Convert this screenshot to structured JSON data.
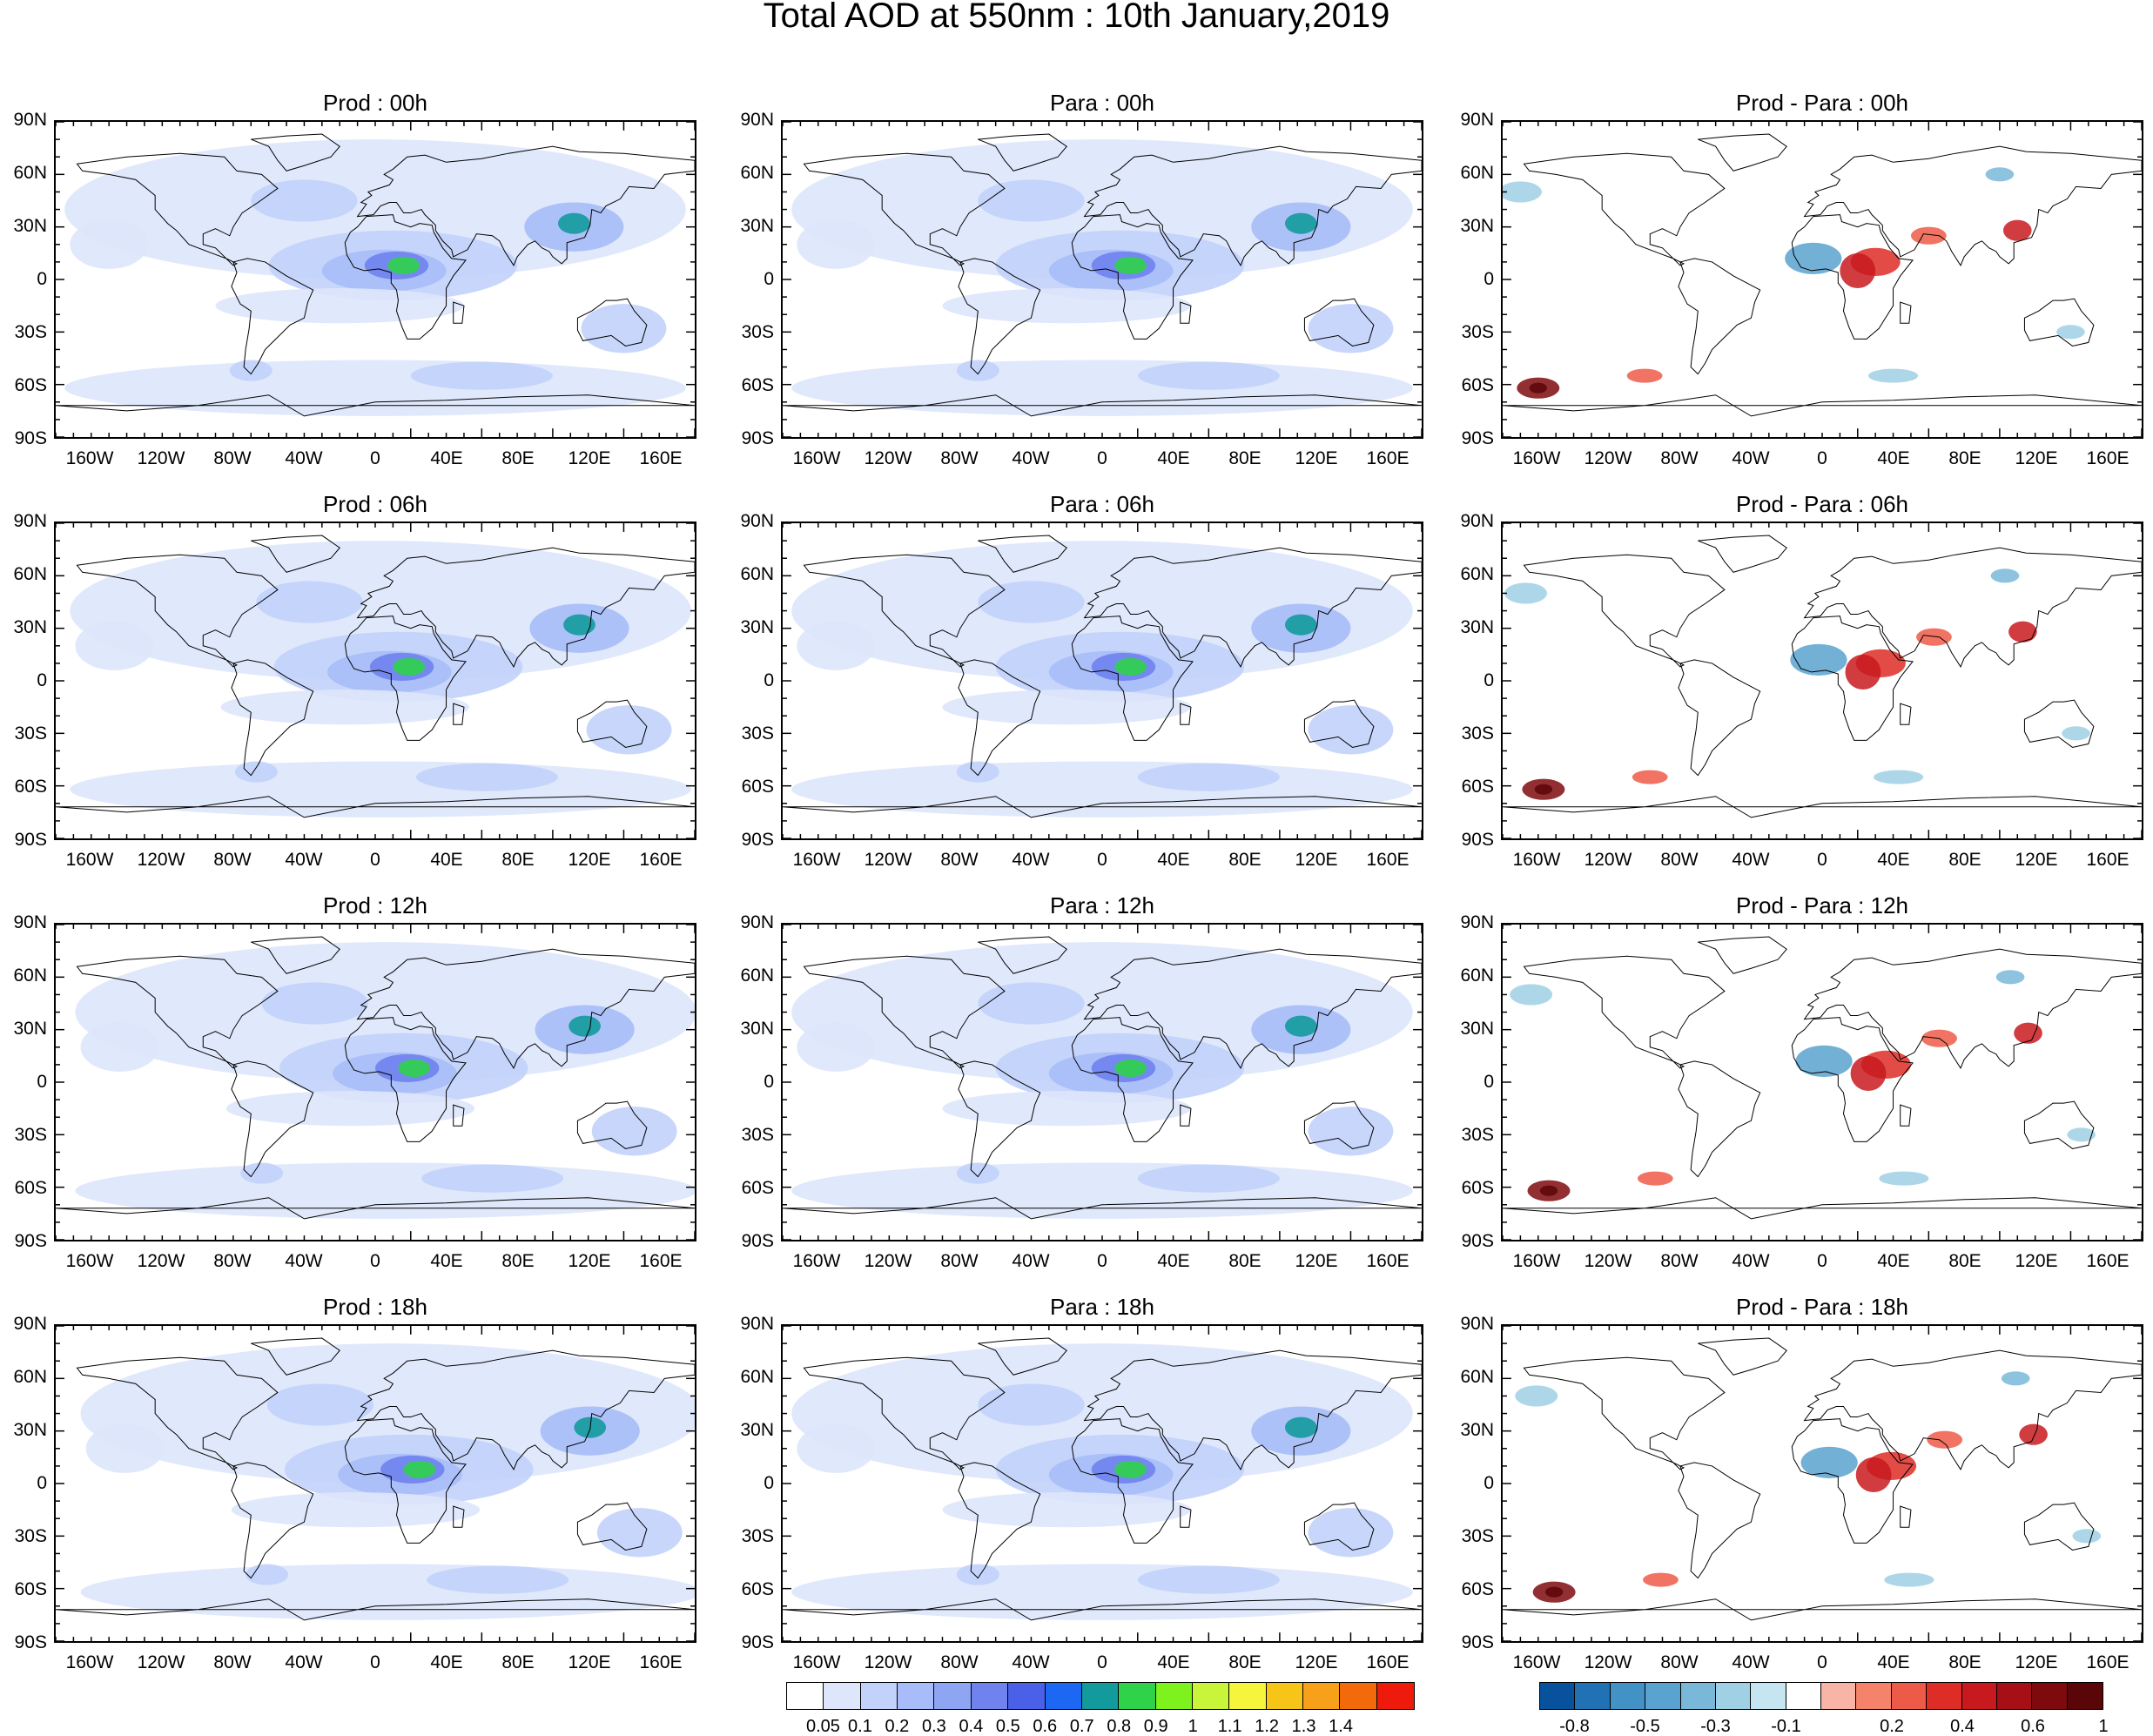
{
  "figure_title": "Total AOD at 550nm : 10th January,2019",
  "panels": [
    {
      "title": "Prod : 00h",
      "kind": "prod"
    },
    {
      "title": "Para : 00h",
      "kind": "para"
    },
    {
      "title": "Prod - Para : 00h",
      "kind": "diff"
    },
    {
      "title": "Prod : 06h",
      "kind": "prod"
    },
    {
      "title": "Para : 06h",
      "kind": "para"
    },
    {
      "title": "Prod - Para : 06h",
      "kind": "diff"
    },
    {
      "title": "Prod : 12h",
      "kind": "prod"
    },
    {
      "title": "Para : 12h",
      "kind": "para"
    },
    {
      "title": "Prod - Para : 12h",
      "kind": "diff"
    },
    {
      "title": "Prod : 18h",
      "kind": "prod"
    },
    {
      "title": "Para : 18h",
      "kind": "para"
    },
    {
      "title": "Prod - Para : 18h",
      "kind": "diff"
    }
  ],
  "lat_ticks": [
    "90N",
    "60N",
    "30N",
    "0",
    "30S",
    "60S",
    "90S"
  ],
  "lon_ticks": [
    "160W",
    "120W",
    "80W",
    "40W",
    "0",
    "40E",
    "80E",
    "120E",
    "160E"
  ],
  "aod_colorbar": {
    "labels": [
      "0.05",
      "0.1",
      "0.2",
      "0.3",
      "0.4",
      "0.5",
      "0.6",
      "0.7",
      "0.8",
      "0.9",
      "1",
      "1.1",
      "1.2",
      "1.3",
      "1.4"
    ],
    "colors": [
      "#ffffff",
      "#dde6fb",
      "#c2d2fb",
      "#a7bcf8",
      "#8ea5f4",
      "#6f82ee",
      "#4b60e8",
      "#1d68f2",
      "#129a9c",
      "#2ed34a",
      "#7df21c",
      "#c8f53a",
      "#f5f53c",
      "#f7c518",
      "#f7a019",
      "#f26a0a",
      "#ee1a0c"
    ]
  },
  "diff_colorbar": {
    "labels": [
      "-0.8",
      "-0.5",
      "-0.3",
      "-0.1",
      "0.2",
      "0.4",
      "0.6",
      "1"
    ],
    "colors": [
      "#08519c",
      "#2171b5",
      "#4292c6",
      "#5aa2cf",
      "#79b8d8",
      "#9fd0e4",
      "#c5e5f0",
      "#ffffff",
      "#f8b4a4",
      "#f5826a",
      "#ee5a48",
      "#de2d26",
      "#c81a1e",
      "#a50f15",
      "#7f0a0e",
      "#5a0508"
    ]
  }
}
